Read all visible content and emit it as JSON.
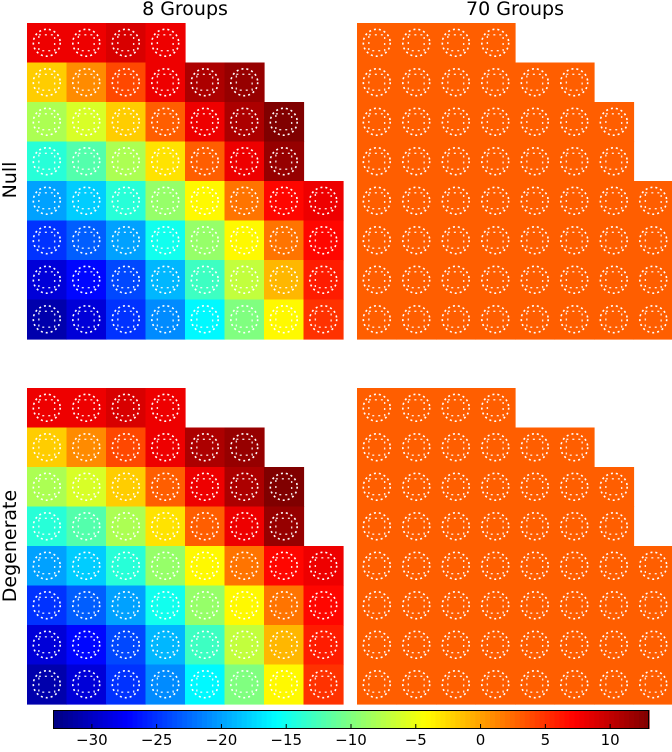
{
  "chart_data": {
    "type": "heatmap",
    "column_titles": [
      "8 Groups",
      "70 Groups"
    ],
    "row_titles": [
      "Null",
      "Degenerate"
    ],
    "grid": {
      "rows": 8,
      "cols": 8,
      "row_lengths": [
        4,
        6,
        7,
        7,
        8,
        8,
        8,
        8
      ]
    },
    "colormap": "jet",
    "colorbar": {
      "vmin": -33,
      "vmax": 13,
      "ticks": [
        -30,
        -25,
        -20,
        -15,
        -10,
        -5,
        0,
        5,
        10
      ],
      "tick_labels": [
        "−30",
        "−25",
        "−20",
        "−15",
        "−10",
        "−5",
        "0",
        "5",
        "10"
      ]
    },
    "panels": [
      {
        "row": "Null",
        "column": "8 Groups",
        "values": [
          [
            8,
            8,
            9,
            8
          ],
          [
            -2,
            1,
            4,
            8,
            11,
            12
          ],
          [
            -8,
            -6,
            -2,
            3,
            8,
            11,
            13
          ],
          [
            -14,
            -12,
            -8,
            -3,
            3,
            8,
            12
          ],
          [
            -20,
            -18,
            -14,
            -9,
            -4,
            2,
            7,
            8
          ],
          [
            -25,
            -23,
            -20,
            -15,
            -9,
            -4,
            2,
            7
          ],
          [
            -29,
            -27,
            -24,
            -19,
            -13,
            -7,
            -1,
            6
          ],
          [
            -31,
            -29,
            -25,
            -21,
            -16,
            -10,
            -4,
            5
          ]
        ]
      },
      {
        "row": "Null",
        "column": "70 Groups",
        "values": [
          [
            3,
            3,
            3,
            3
          ],
          [
            3,
            3,
            3,
            3,
            3,
            3
          ],
          [
            3,
            3,
            3,
            3,
            3,
            3,
            3
          ],
          [
            3,
            3,
            3,
            3,
            3,
            3,
            3
          ],
          [
            3,
            3,
            3,
            3,
            3,
            3,
            3,
            3
          ],
          [
            3,
            3,
            3,
            3,
            3,
            3,
            3,
            3
          ],
          [
            3,
            3,
            3,
            3,
            3,
            3,
            3,
            3
          ],
          [
            3,
            3,
            3,
            3,
            3,
            3,
            3,
            3
          ]
        ]
      },
      {
        "row": "Degenerate",
        "column": "8 Groups",
        "values": [
          [
            8,
            8,
            9,
            8
          ],
          [
            -2,
            1,
            4,
            8,
            11,
            12
          ],
          [
            -8,
            -6,
            -2,
            3,
            8,
            11,
            13
          ],
          [
            -14,
            -12,
            -8,
            -3,
            3,
            8,
            12
          ],
          [
            -20,
            -18,
            -14,
            -9,
            -4,
            2,
            7,
            8
          ],
          [
            -25,
            -23,
            -20,
            -15,
            -9,
            -4,
            2,
            7
          ],
          [
            -29,
            -27,
            -24,
            -19,
            -13,
            -7,
            -1,
            6
          ],
          [
            -31,
            -29,
            -25,
            -21,
            -16,
            -10,
            -4,
            5
          ]
        ]
      },
      {
        "row": "Degenerate",
        "column": "70 Groups",
        "values": [
          [
            3,
            3,
            3,
            3
          ],
          [
            3,
            3,
            3,
            3,
            3,
            3
          ],
          [
            3,
            3,
            3,
            3,
            3,
            3,
            3
          ],
          [
            3,
            3,
            3,
            3,
            3,
            3,
            3
          ],
          [
            3,
            3,
            3,
            3,
            3,
            3,
            3,
            3
          ],
          [
            3,
            3,
            3,
            3,
            3,
            3,
            3,
            3
          ],
          [
            3,
            3,
            3,
            3,
            3,
            3,
            3,
            3
          ],
          [
            3,
            3,
            3,
            3,
            3,
            3,
            3,
            3
          ]
        ]
      }
    ]
  }
}
